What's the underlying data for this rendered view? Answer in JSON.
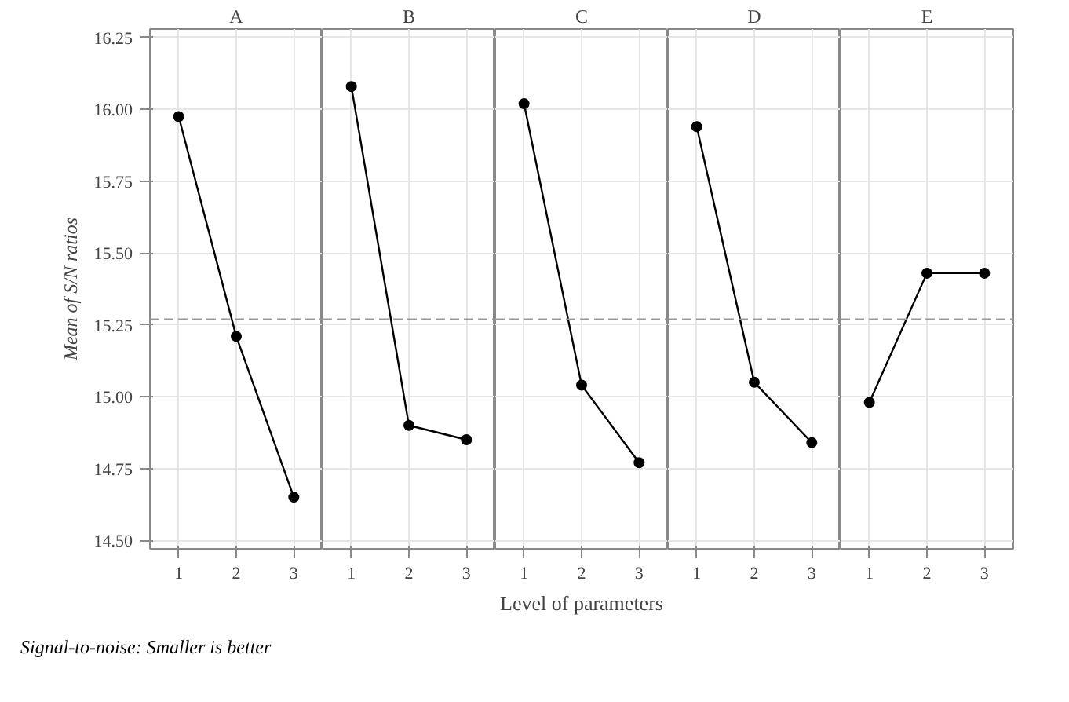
{
  "chart_data": [
    {
      "type": "line",
      "title": "A",
      "categories": [
        "1",
        "2",
        "3"
      ],
      "values": [
        15.975,
        15.21,
        14.65
      ],
      "color": "#000000",
      "ylim": [
        14.47,
        16.28
      ],
      "yticks": [
        {
          "value": 14.5,
          "label": "14.50"
        },
        {
          "value": 14.75,
          "label": "14.75"
        },
        {
          "value": 15,
          "label": "15.00"
        },
        {
          "value": 15.25,
          "label": "15.25"
        },
        {
          "value": 15.5,
          "label": "15.50"
        },
        {
          "value": 15.75,
          "label": "15.75"
        },
        {
          "value": 16,
          "label": "16.00"
        },
        {
          "value": 16.25,
          "label": "16.25"
        }
      ],
      "ylabel": "Mean of S/N ratios",
      "ref_lines": [
        {
          "axis": "y",
          "value": 15.27,
          "line_style": "dashed",
          "color": "#999999"
        }
      ],
      "grid": true,
      "marker": "circle",
      "annotations": [
        "Signal-to-noise: Smaller is better"
      ]
    },
    {
      "type": "line",
      "title": "B",
      "categories": [
        "1",
        "2",
        "3"
      ],
      "values": [
        16.08,
        14.9,
        14.85
      ],
      "color": "#000000",
      "ylim": [
        14.47,
        16.28
      ],
      "yticks": [
        14.5,
        14.75,
        15,
        15.25,
        15.5,
        15.75,
        16,
        16.25
      ],
      "tick_labels": "x",
      "ref_lines": [
        {
          "axis": "y",
          "value": 15.27,
          "line_style": "dashed",
          "color": "#999999"
        }
      ],
      "grid": true,
      "marker": "circle"
    },
    {
      "type": "line",
      "title": "C",
      "categories": [
        "1",
        "2",
        "3"
      ],
      "values": [
        16.02,
        15.04,
        14.77
      ],
      "color": "#000000",
      "ylim": [
        14.47,
        16.28
      ],
      "yticks": [
        14.5,
        14.75,
        15,
        15.25,
        15.5,
        15.75,
        16,
        16.25
      ],
      "tick_labels": "x",
      "xlabel": "Level of parameters",
      "ref_lines": [
        {
          "axis": "y",
          "value": 15.27,
          "line_style": "dashed",
          "color": "#999999"
        }
      ],
      "grid": true,
      "marker": "circle"
    },
    {
      "type": "line",
      "title": "D",
      "categories": [
        "1",
        "2",
        "3"
      ],
      "values": [
        15.94,
        15.05,
        14.84
      ],
      "color": "#000000",
      "ylim": [
        14.47,
        16.28
      ],
      "yticks": [
        14.5,
        14.75,
        15,
        15.25,
        15.5,
        15.75,
        16,
        16.25
      ],
      "tick_labels": "x",
      "ref_lines": [
        {
          "axis": "y",
          "value": 15.27,
          "line_style": "dashed",
          "color": "#999999"
        }
      ],
      "grid": true,
      "marker": "circle"
    },
    {
      "type": "line",
      "title": "E",
      "categories": [
        "1",
        "2",
        "3"
      ],
      "values": [
        14.98,
        15.43,
        15.43
      ],
      "color": "#000000",
      "ylim": [
        14.47,
        16.28
      ],
      "yticks": [
        14.5,
        14.75,
        15,
        15.25,
        15.5,
        15.75,
        16,
        16.25
      ],
      "tick_labels": "x",
      "ref_lines": [
        {
          "axis": "y",
          "value": 15.27,
          "line_style": "dashed",
          "color": "#999999"
        }
      ],
      "grid": true,
      "marker": "circle"
    }
  ]
}
